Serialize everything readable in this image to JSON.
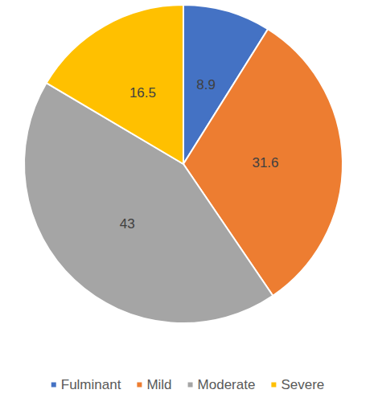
{
  "chart_data": {
    "type": "pie",
    "categories": [
      "Fulminant",
      "Mild",
      "Moderate",
      "Severe"
    ],
    "values": [
      8.9,
      31.6,
      43,
      16.5
    ],
    "colors": [
      "#4472c4",
      "#ed7d31",
      "#a5a5a5",
      "#ffc000"
    ],
    "data_labels": true,
    "legend": "bottom"
  }
}
